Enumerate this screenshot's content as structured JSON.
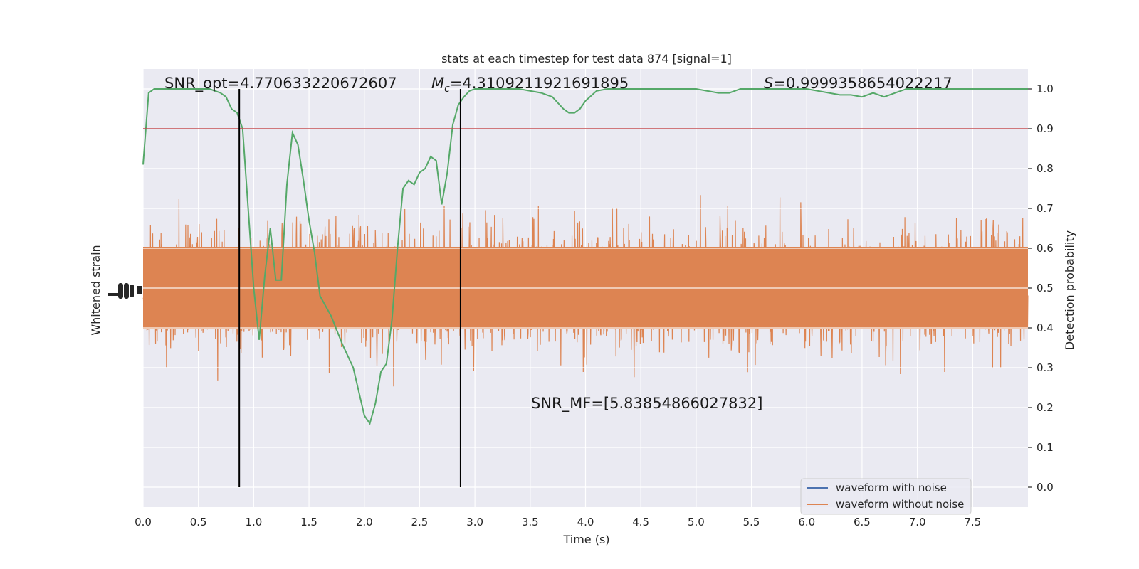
{
  "chart_data": {
    "type": "line",
    "title": "stats at each timestep for test data 874 [signal=1]",
    "xlabel": "Time (s)",
    "ylabel_left": "Whitened strain",
    "ylabel_right": "Detection probability",
    "xlim": [
      0,
      8
    ],
    "ylim_right": [
      -0.05,
      1.05
    ],
    "x_ticks": [
      0.0,
      0.5,
      1.0,
      1.5,
      2.0,
      2.5,
      3.0,
      3.5,
      4.0,
      4.5,
      5.0,
      5.5,
      6.0,
      6.5,
      7.0,
      7.5
    ],
    "x_tick_labels": [
      "0.0",
      "0.5",
      "1.0",
      "1.5",
      "2.0",
      "2.5",
      "3.0",
      "3.5",
      "4.0",
      "4.5",
      "5.0",
      "5.5",
      "6.0",
      "6.5",
      "7.0",
      "7.5"
    ],
    "y_right_ticks": [
      0.0,
      0.1,
      0.2,
      0.3,
      0.4,
      0.5,
      0.6,
      0.7,
      0.8,
      0.9,
      1.0
    ],
    "y_right_tick_labels": [
      "0.0",
      "0.1",
      "0.2",
      "0.3",
      "0.4",
      "0.5",
      "0.6",
      "0.7",
      "0.8",
      "0.9",
      "1.0"
    ],
    "threshold": 0.9,
    "vlines": [
      0.87,
      2.87
    ],
    "annotations": {
      "snr_opt": "SNR_opt=4.770633220672607",
      "mc_symbol": "M",
      "mc_sub": "c",
      "mc_value": "=4.3109211921691895",
      "s_symbol": "S",
      "s_value": "=0.9999358654022217",
      "snr_mf": "SNR_MF=[5.83854866027832]"
    },
    "legend": [
      "waveform with noise",
      "waveform without noise"
    ],
    "series": [
      {
        "name": "detection probability",
        "x": [
          0.0,
          0.05,
          0.1,
          0.2,
          0.3,
          0.4,
          0.5,
          0.6,
          0.7,
          0.75,
          0.8,
          0.85,
          0.9,
          0.95,
          1.0,
          1.05,
          1.1,
          1.15,
          1.2,
          1.25,
          1.3,
          1.35,
          1.4,
          1.45,
          1.5,
          1.55,
          1.6,
          1.7,
          1.8,
          1.9,
          2.0,
          2.05,
          2.1,
          2.15,
          2.2,
          2.25,
          2.3,
          2.35,
          2.4,
          2.45,
          2.5,
          2.55,
          2.6,
          2.65,
          2.7,
          2.75,
          2.8,
          2.85,
          2.9,
          2.95,
          3.0,
          3.1,
          3.2,
          3.4,
          3.6,
          3.7,
          3.8,
          3.85,
          3.9,
          3.95,
          4.0,
          4.1,
          4.2,
          4.3,
          4.5,
          5.0,
          5.2,
          5.3,
          5.4,
          5.6,
          6.0,
          6.3,
          6.4,
          6.5,
          6.6,
          6.7,
          6.8,
          6.9,
          7.0,
          7.5,
          7.8,
          8.0
        ],
        "y": [
          0.81,
          0.99,
          1.0,
          1.0,
          1.0,
          1.0,
          1.0,
          1.0,
          0.99,
          0.98,
          0.95,
          0.94,
          0.9,
          0.7,
          0.5,
          0.37,
          0.53,
          0.65,
          0.52,
          0.52,
          0.76,
          0.89,
          0.86,
          0.77,
          0.67,
          0.59,
          0.48,
          0.43,
          0.36,
          0.3,
          0.18,
          0.16,
          0.21,
          0.29,
          0.31,
          0.42,
          0.6,
          0.75,
          0.77,
          0.76,
          0.79,
          0.8,
          0.83,
          0.82,
          0.71,
          0.79,
          0.91,
          0.96,
          0.98,
          0.995,
          1.0,
          1.0,
          1.0,
          1.0,
          0.99,
          0.98,
          0.95,
          0.94,
          0.94,
          0.95,
          0.97,
          0.995,
          1.0,
          1.0,
          1.0,
          1.0,
          0.99,
          0.99,
          1.0,
          1.0,
          1.0,
          0.985,
          0.985,
          0.98,
          0.99,
          0.98,
          0.99,
          1.0,
          1.0,
          1.0,
          1.0,
          1.0
        ]
      }
    ]
  },
  "colors": {
    "plot_bg": "#eaeaf2",
    "grid": "#ffffff",
    "noisy": "#4c72b0",
    "clean": "#dd8452",
    "probability": "#55a868",
    "threshold": "#c44e52",
    "vline": "#000000"
  }
}
